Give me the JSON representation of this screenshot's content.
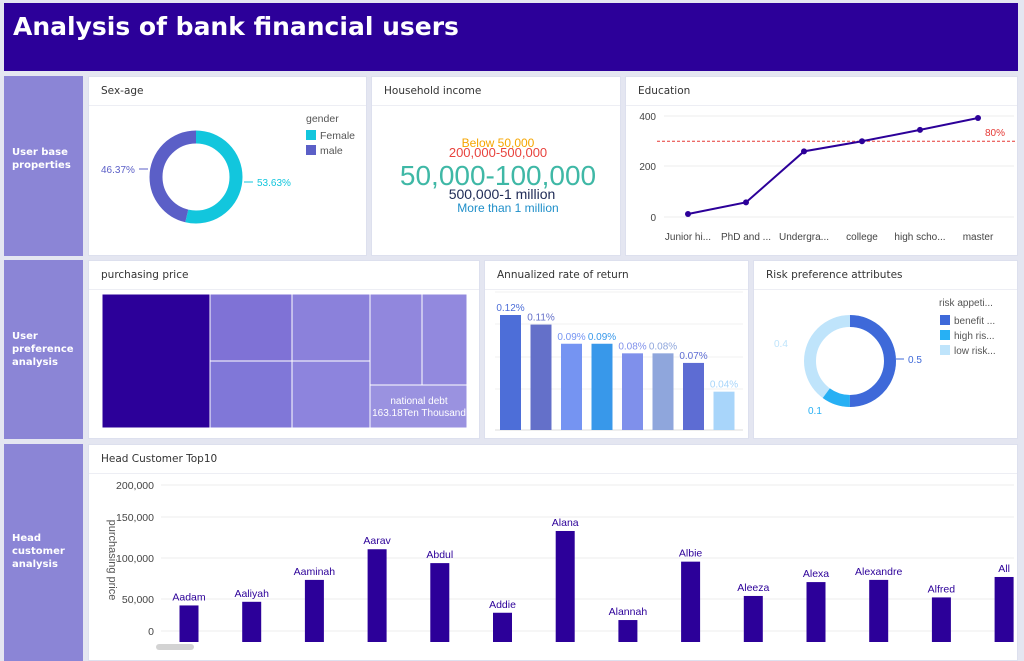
{
  "header": {
    "title": "Analysis of bank financial users"
  },
  "sections": {
    "base": "User base properties",
    "preference": "User preference analysis",
    "head": "Head customer analysis"
  },
  "panels": {
    "sex_age": "Sex-age",
    "household": "Household income",
    "education": "Education",
    "purchasing": "purchasing price",
    "annualized": "Annualized rate of return",
    "risk": "Risk preference attributes",
    "top10": "Head Customer Top10"
  },
  "colors": {
    "header": "#2c0099",
    "sidebar": "#8b85d6",
    "female": "#12c6dd",
    "male": "#5b5fc7",
    "bar": "#2c0099"
  },
  "chart_data": [
    {
      "type": "pie",
      "title": "Sex-age",
      "legend_title": "gender",
      "labels": [
        "Female",
        "male"
      ],
      "values": [
        53.63,
        46.37
      ],
      "value_labels": [
        "53.63%",
        "46.37%"
      ]
    },
    {
      "type": "table",
      "title": "Household income",
      "words": [
        "Below 50,000",
        "200,000-500,000",
        "50,000-100,000",
        "500,000-1 million",
        "More than 1 million"
      ]
    },
    {
      "type": "line",
      "title": "Education",
      "categories": [
        "Junior hi...",
        "PhD and ...",
        "Undergra...",
        "college",
        "high scho...",
        "master"
      ],
      "values": [
        12,
        58,
        260,
        300,
        345,
        392
      ],
      "ylim": [
        0,
        400
      ],
      "yticks": [
        "400",
        "200",
        "0"
      ],
      "reference_label": "80%",
      "reference_value": 300
    },
    {
      "type": "heatmap",
      "title": "purchasing price",
      "cells": [
        {
          "label": "national debt",
          "value_label": "163.18Ten Thousand"
        }
      ]
    },
    {
      "type": "bar",
      "title": "Annualized rate of return",
      "values": [
        0.12,
        0.11,
        0.09,
        0.09,
        0.08,
        0.08,
        0.07,
        0.04
      ],
      "value_labels": [
        "0.12%",
        "0.11%",
        "0.09%",
        "0.09%",
        "0.08%",
        "0.08%",
        "0.07%",
        "0.04%"
      ],
      "colors": [
        "#4d6ed8",
        "#6470c9",
        "#7594f2",
        "#3898ea",
        "#7f90eb",
        "#8fa6dc",
        "#5d6cd3",
        "#a8d5fa"
      ]
    },
    {
      "type": "pie",
      "title": "Risk preference attributes",
      "legend_title": "risk appeti...",
      "labels": [
        "benefit ...",
        "high ris...",
        "low risk..."
      ],
      "values": [
        0.5,
        0.1,
        0.4
      ],
      "value_labels": [
        "0.5",
        "0.1",
        "0.4"
      ],
      "colors": [
        "#3e69d9",
        "#27b0f4",
        "#bfe4fb"
      ]
    },
    {
      "type": "bar",
      "title": "Head Customer Top10",
      "ylabel": "purchasing price",
      "yticks": [
        "200,000",
        "150,000",
        "100,000",
        "50,000",
        "0"
      ],
      "ylim": [
        0,
        200000
      ],
      "categories": [
        "Aadam",
        "Aaliyah",
        "Aaminah",
        "Aarav",
        "Abdul",
        "Addie",
        "Alana",
        "Alannah",
        "Albie",
        "Aleeza",
        "Alexa",
        "Alexandre",
        "Alfred",
        "All"
      ],
      "values": [
        35000,
        40000,
        70000,
        112000,
        93000,
        25000,
        137000,
        15000,
        95000,
        48000,
        67000,
        70000,
        46000,
        74000
      ]
    }
  ]
}
